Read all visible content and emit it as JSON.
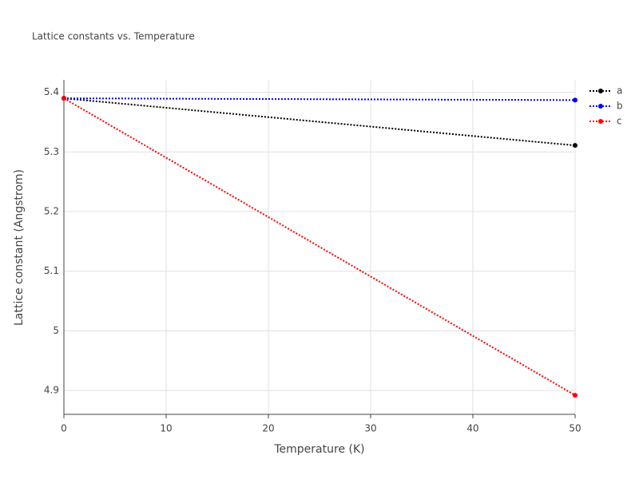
{
  "chart_data": {
    "type": "line",
    "title": "Lattice constants vs. Temperature",
    "x_label": "Temperature (K)",
    "y_label": "Lattice constant (Angstrom)",
    "x": [
      0,
      50
    ],
    "series": [
      {
        "name": "a",
        "color": "#000000",
        "values": [
          5.39,
          5.311
        ]
      },
      {
        "name": "b",
        "color": "#0000ff",
        "values": [
          5.39,
          5.387
        ]
      },
      {
        "name": "c",
        "color": "#ff0000",
        "values": [
          5.39,
          4.892
        ]
      }
    ],
    "xlim": [
      0,
      50
    ],
    "xticks": [
      0,
      10,
      20,
      30,
      40,
      50
    ],
    "ylim": [
      4.86,
      5.421
    ],
    "yticks": [
      4.9,
      5,
      5.1,
      5.2,
      5.3,
      5.4
    ],
    "grid": true,
    "line_style": "dotted",
    "legend": "right"
  }
}
